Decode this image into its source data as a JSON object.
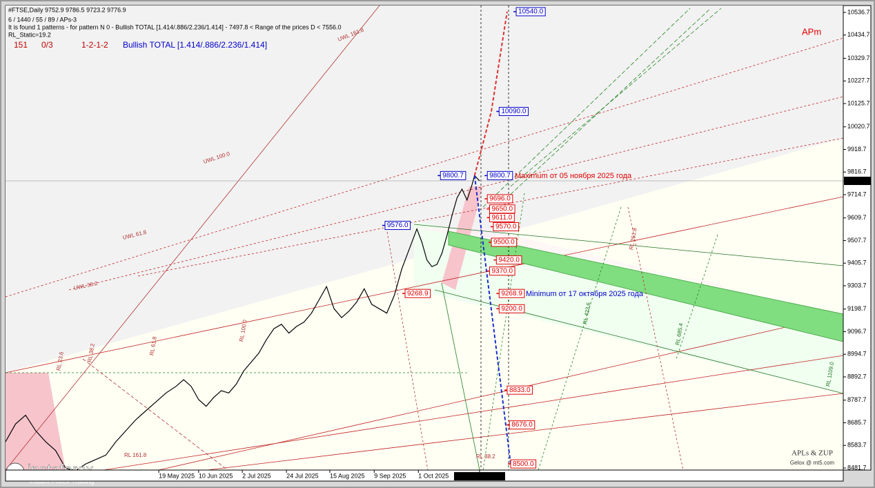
{
  "chart_data": {
    "type": "line",
    "header": [
      "#FTSE,Daily  9752.9 9786.5 9723.2 9776.9",
      "6 / 1440 / 55 / 89 / APs-3",
      "It is found 1 patterns  -  for pattern N 0 - Bullish TOTAL [1.414/.886/2.236/1.414] - 7497.8 < Range of the prices D < 7556.0",
      "RL_Static=19.2"
    ],
    "pattern_info": [
      "151",
      "0/3",
      "1-2-1-2"
    ],
    "pattern_name": "Bullish TOTAL [1.414/.886/2.236/1.414]",
    "corner_label": "APm",
    "annotations": [
      "Maximum от 05 ноября 2025 года",
      "Minimum от 17 октября 2025 года"
    ],
    "credits": [
      "APLs & ZUP",
      "Gelox @ mt5.com"
    ],
    "logo": [
      "instaforex",
      "Instant Forex Trading"
    ],
    "fib_labels": [
      "UWL 161.8",
      "UWL 100.0",
      "UWL 61.8",
      "UWL 38.2",
      "RL 100.0",
      "RL 61.8",
      "RL 38.2",
      "RL 23.6",
      "RL 261.8",
      "RL 423.6",
      "RL 685.4",
      "RL 1109.0",
      "RL 161.8",
      "RL 38.2"
    ],
    "color": "#000000",
    "x": [
      0,
      4,
      8,
      12,
      16,
      20,
      24,
      28,
      32,
      36,
      40,
      44,
      48,
      52,
      56,
      60,
      64,
      68,
      71,
      74,
      77,
      80,
      83,
      86,
      89,
      92,
      95,
      98,
      101,
      104,
      107,
      110,
      113,
      116,
      119,
      122,
      125,
      128,
      131,
      134,
      137,
      140,
      143,
      146,
      149,
      152,
      155,
      158,
      161,
      164,
      166,
      168,
      170,
      172,
      174,
      176,
      178,
      180,
      182,
      184,
      186,
      187,
      189
    ],
    "values": [
      8600,
      8680,
      8720,
      8650,
      8600,
      8560,
      8480,
      8470,
      8500,
      8520,
      8540,
      8600,
      8650,
      8700,
      8740,
      8780,
      8820,
      8850,
      8880,
      8850,
      8790,
      8760,
      8800,
      8830,
      8820,
      8860,
      8920,
      8960,
      9000,
      9060,
      9110,
      9130,
      9090,
      9120,
      9140,
      9180,
      9240,
      9300,
      9200,
      9160,
      9190,
      9230,
      9290,
      9220,
      9200,
      9180,
      9260,
      9380,
      9470,
      9560,
      9500,
      9420,
      9390,
      9400,
      9450,
      9530,
      9620,
      9700,
      9740,
      9690,
      9760,
      9800.7,
      9776.9
    ],
    "last_price": 9776.9,
    "projection_up": {
      "color": "#e03030",
      "x": [
        187,
        193.7,
        200
      ],
      "values": [
        9800.7,
        10090,
        10540
      ]
    },
    "projection_down": {
      "color": "#1a2fd0",
      "x": [
        187,
        201.4
      ],
      "values": [
        9800.7,
        8500
      ]
    },
    "levels": [
      {
        "x": 203.6,
        "value": 10540,
        "label": "10540.0",
        "color": "#0000cc"
      },
      {
        "x": 196.8,
        "value": 10090,
        "label": "10090.0",
        "color": "#0000cc"
      },
      {
        "x": 173.4,
        "value": 9800.7,
        "label": "9800.7",
        "color": "#0000cc"
      },
      {
        "x": 192.1,
        "value": 9800.7,
        "label": "9800.7",
        "color": "#0000cc"
      },
      {
        "x": 151.3,
        "value": 9576,
        "label": "9576.0",
        "color": "#0000cc"
      },
      {
        "x": 192.1,
        "value": 9696,
        "label": "9696.0",
        "color": "#e00000"
      },
      {
        "x": 193,
        "value": 9650,
        "label": "9650.0",
        "color": "#e00000"
      },
      {
        "x": 193,
        "value": 9611,
        "label": "9611.0",
        "color": "#e00000"
      },
      {
        "x": 194.5,
        "value": 9570,
        "label": "9570.0",
        "color": "#e00000"
      },
      {
        "x": 193.7,
        "value": 9500,
        "label": "9500.0",
        "color": "#e00000"
      },
      {
        "x": 195.7,
        "value": 9420,
        "label": "9420.0",
        "color": "#e00000"
      },
      {
        "x": 193,
        "value": 9370,
        "label": "9370.0",
        "color": "#e00000"
      },
      {
        "x": 159.3,
        "value": 9268.9,
        "label": "9268.9",
        "color": "#e00000"
      },
      {
        "x": 196.8,
        "value": 9268.9,
        "label": "9268.9",
        "color": "#e00000"
      },
      {
        "x": 196.8,
        "value": 9200,
        "label": "9200.0",
        "color": "#e00000"
      },
      {
        "x": 200,
        "value": 8833,
        "label": "8833.0",
        "color": "#e00000"
      },
      {
        "x": 200.9,
        "value": 8676,
        "label": "8676.0",
        "color": "#e00000"
      },
      {
        "x": 201.4,
        "value": 8500,
        "label": "8500.0",
        "color": "#e00000"
      }
    ],
    "xlim": [
      0,
      334
    ],
    "xticks": [
      {
        "value": 61.1,
        "label": "19 May 2025"
      },
      {
        "value": 77,
        "label": "10 Jun 2025"
      },
      {
        "value": 94.4,
        "label": "2 Jul 2025"
      },
      {
        "value": 112,
        "label": "24 Jul 2025"
      },
      {
        "value": 129.3,
        "label": "15 Aug 2025"
      },
      {
        "value": 147,
        "label": "9 Sep 2025"
      },
      {
        "value": 164.6,
        "label": "1 Oct 2025"
      },
      {
        "value": 189,
        "label": "2025.11.10 13:23"
      }
    ],
    "ylim": [
      8481.7,
      10536.7
    ],
    "yticks": [
      10536.7,
      10434.7,
      10329.7,
      10227.7,
      10125.7,
      10020.7,
      9918.7,
      9816.7,
      9714.7,
      9609.7,
      9507.7,
      9405.7,
      9303.7,
      9198.7,
      9096.7,
      8994.7,
      8892.7,
      8787.7,
      8685.7,
      8583.7,
      8481.7
    ]
  }
}
